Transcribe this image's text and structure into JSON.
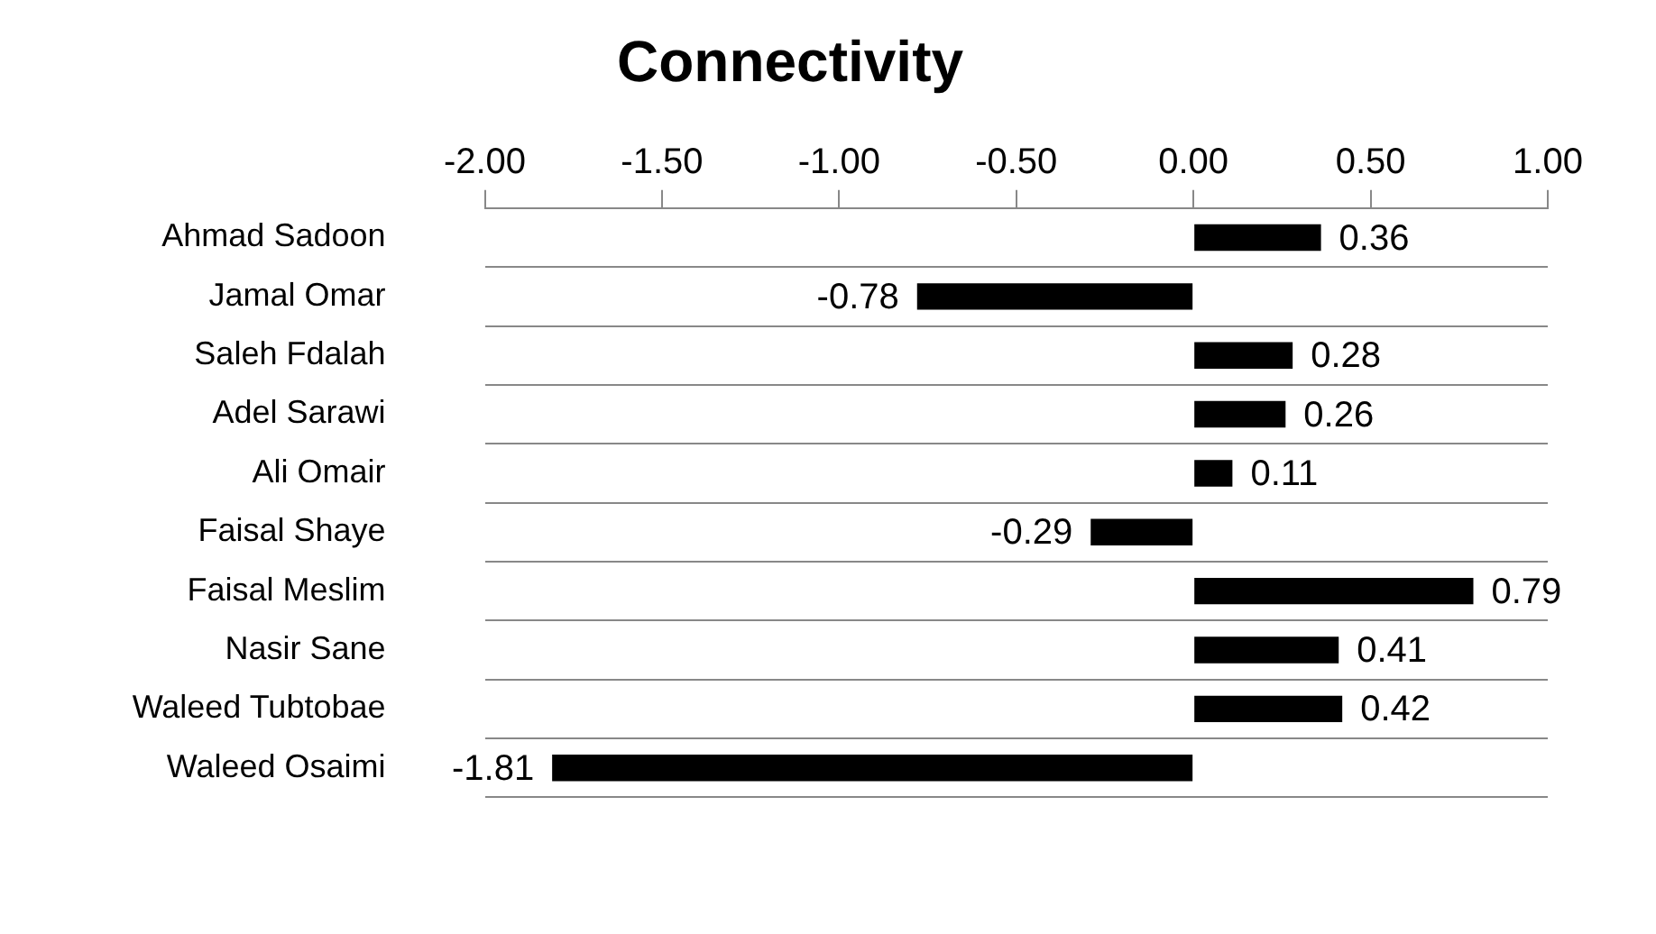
{
  "chart_data": {
    "type": "bar",
    "title": "Connectivity",
    "orientation": "horizontal",
    "categories": [
      "Ahmad Sadoon",
      "Jamal Omar",
      "Saleh Fdalah",
      "Adel Sarawi",
      "Ali Omair",
      "Faisal Shaye",
      "Faisal Meslim",
      "Nasir Sane",
      "Waleed Tubtobae",
      "Waleed Osaimi"
    ],
    "values": [
      0.36,
      -0.78,
      0.28,
      0.26,
      0.11,
      -0.29,
      0.79,
      0.41,
      0.42,
      -1.81
    ],
    "color": "#000000",
    "xlim": [
      -2,
      1
    ],
    "xticks": [
      {
        "value": -2,
        "label": "-2.00"
      },
      {
        "value": -1.5,
        "label": "-1.50"
      },
      {
        "value": -1,
        "label": "-1.00"
      },
      {
        "value": -0.5,
        "label": "-0.50"
      },
      {
        "value": 0,
        "label": "0.00"
      },
      {
        "value": 0.5,
        "label": "0.50"
      },
      {
        "value": 1,
        "label": "1.00"
      }
    ],
    "grid": "y",
    "data_labels": true,
    "legend": false
  }
}
